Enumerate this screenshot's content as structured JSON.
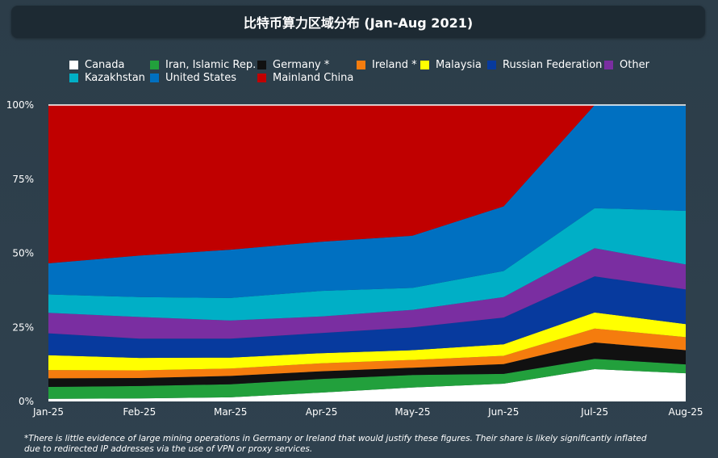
{
  "chart_data": {
    "type": "area",
    "stacked": true,
    "title": "比特币算力区域分布 (Jan-Aug 2021)",
    "categories": [
      "Jan-25",
      "Feb-25",
      "Mar-25",
      "Apr-25",
      "May-25",
      "Jun-25",
      "Jul-25",
      "Aug-25"
    ],
    "ylim": [
      0,
      100
    ],
    "yticks": [
      "0%",
      "25%",
      "50%",
      "75%",
      "100%"
    ],
    "legend_position": "top",
    "series": [
      {
        "name": "Canada",
        "color": "#ffffff",
        "values": [
          0.9,
          1.0,
          1.4,
          3.0,
          4.7,
          6.0,
          10.9,
          9.5
        ]
      },
      {
        "name": "Iran, Islamic Rep.",
        "color": "#22a03c",
        "values": [
          4.0,
          4.2,
          4.4,
          4.6,
          4.2,
          3.3,
          3.5,
          3.0
        ]
      },
      {
        "name": "Germany *",
        "color": "#111111",
        "values": [
          2.9,
          2.7,
          2.8,
          2.6,
          2.5,
          3.3,
          5.5,
          4.8
        ]
      },
      {
        "name": "Ireland *",
        "color": "#f57c0e",
        "values": [
          2.8,
          2.6,
          2.5,
          2.7,
          2.6,
          2.8,
          4.7,
          4.4
        ]
      },
      {
        "name": "Malaysia",
        "color": "#ffff00",
        "values": [
          5.0,
          4.2,
          3.7,
          3.4,
          3.3,
          3.9,
          5.4,
          4.4
        ]
      },
      {
        "name": "Russian Federation",
        "color": "#073a9e",
        "values": [
          7.4,
          6.5,
          6.4,
          6.8,
          7.7,
          9.0,
          12.2,
          11.7
        ]
      },
      {
        "name": "Other",
        "color": "#7a2ea1",
        "values": [
          6.9,
          7.3,
          6.1,
          5.6,
          5.9,
          6.9,
          9.5,
          8.4
        ]
      },
      {
        "name": "Kazakhstan",
        "color": "#00afc6",
        "values": [
          6.2,
          6.7,
          7.6,
          8.6,
          7.4,
          8.8,
          13.5,
          18.1
        ]
      },
      {
        "name": "United States",
        "color": "#0070c1",
        "values": [
          10.5,
          14.0,
          16.3,
          16.6,
          17.6,
          21.8,
          35.4,
          35.4
        ]
      },
      {
        "name": "Mainland China",
        "color": "#c00000",
        "values": [
          53.4,
          50.8,
          48.8,
          46.1,
          44.1,
          34.3,
          0,
          0
        ]
      }
    ]
  },
  "legend": [
    {
      "label": "Canada",
      "color": "#ffffff"
    },
    {
      "label": "Iran, Islamic Rep.",
      "color": "#22a03c"
    },
    {
      "label": "Germany *",
      "color": "#111111"
    },
    {
      "label": "Ireland *",
      "color": "#f57c0e"
    },
    {
      "label": "Malaysia",
      "color": "#ffff00"
    },
    {
      "label": "Russian Federation",
      "color": "#073a9e"
    },
    {
      "label": "Other",
      "color": "#7a2ea1"
    },
    {
      "label": "Kazakhstan",
      "color": "#00afc6"
    },
    {
      "label": "United States",
      "color": "#0070c1"
    },
    {
      "label": "Mainland China",
      "color": "#c00000"
    }
  ],
  "footnote": "*There is little evidence of large mining operations in Germany or Ireland that would justify these figures. Their share is likely significantly inflated due to redirected IP addresses via the use of VPN or proxy services."
}
